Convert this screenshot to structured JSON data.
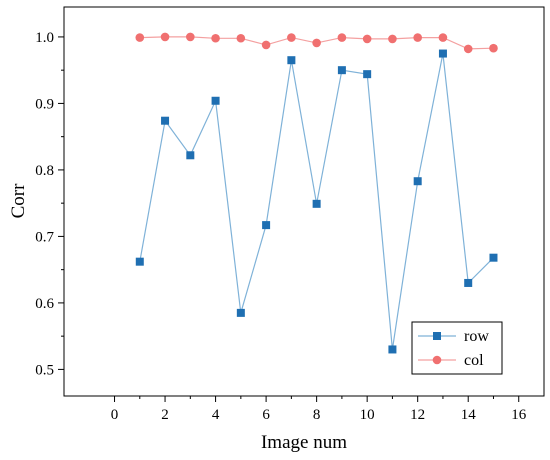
{
  "chart_data": {
    "type": "line",
    "title": "",
    "xlabel": "Image num",
    "ylabel": "Corr",
    "xlim": [
      -2,
      17
    ],
    "ylim": [
      0.46,
      1.045
    ],
    "x_ticks": [
      0,
      2,
      4,
      6,
      8,
      10,
      12,
      14,
      16
    ],
    "y_ticks": [
      0.5,
      0.6,
      0.7,
      0.8,
      0.9,
      1.0
    ],
    "x_tick_labels": [
      "0",
      "2",
      "4",
      "6",
      "8",
      "10",
      "12",
      "14",
      "16"
    ],
    "y_tick_labels": [
      "0.5",
      "0.6",
      "0.7",
      "0.8",
      "0.9",
      "1.0"
    ],
    "grid": false,
    "legend_position": "bottom-right",
    "x": [
      1,
      2,
      3,
      4,
      5,
      6,
      7,
      8,
      9,
      10,
      11,
      12,
      13,
      14,
      15
    ],
    "series": [
      {
        "name": "row",
        "marker": "square",
        "line_color": "#7fb2d8",
        "marker_color": "#1f6fb2",
        "values": [
          0.662,
          0.874,
          0.822,
          0.904,
          0.585,
          0.717,
          0.965,
          0.749,
          0.95,
          0.944,
          0.53,
          0.783,
          0.975,
          0.63,
          0.668
        ]
      },
      {
        "name": "col",
        "marker": "circle",
        "line_color": "#f4a0a0",
        "marker_color": "#f07070",
        "values": [
          0.999,
          1.0,
          1.0,
          0.998,
          0.998,
          0.988,
          0.999,
          0.991,
          0.999,
          0.997,
          0.997,
          0.999,
          0.999,
          0.982,
          0.983
        ]
      }
    ]
  }
}
